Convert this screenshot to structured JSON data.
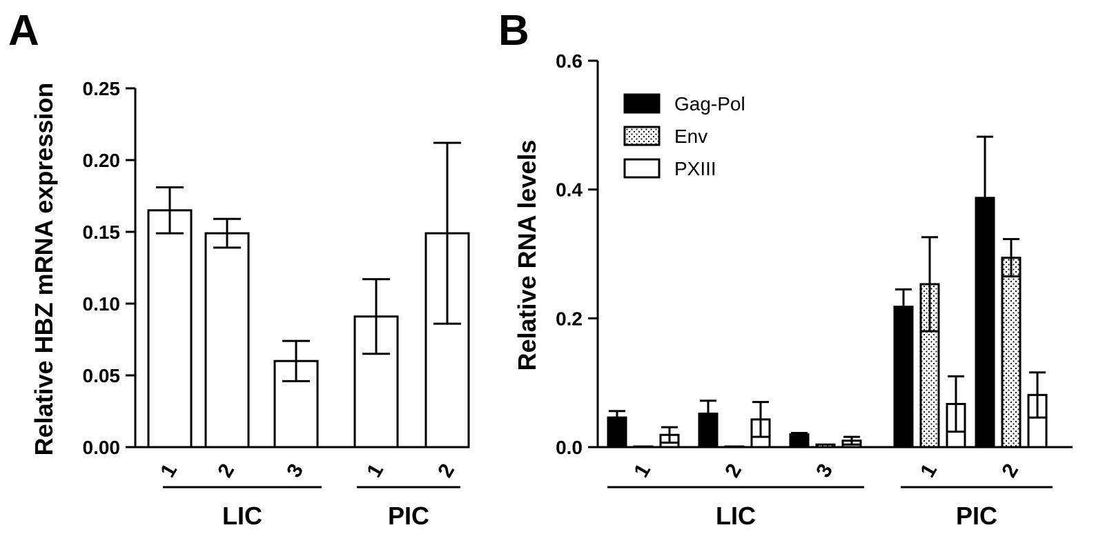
{
  "panels": [
    {
      "letter": "A"
    },
    {
      "letter": "B"
    }
  ],
  "chart_data": [
    {
      "type": "bar",
      "ylabel": "Relative HBZ mRNA expression",
      "ylim": [
        0,
        0.25
      ],
      "yticks": [
        0.0,
        0.05,
        0.1,
        0.15,
        0.2,
        0.25
      ],
      "ytick_labels": [
        "0.00",
        "0.05",
        "0.10",
        "0.15",
        "0.20",
        "0.25"
      ],
      "categories": [
        "1",
        "2",
        "3",
        "1",
        "2"
      ],
      "groups": [
        {
          "label": "LIC",
          "categories": [
            0,
            1,
            2
          ]
        },
        {
          "label": "PIC",
          "categories": [
            3,
            4
          ]
        }
      ],
      "series": [
        {
          "values": [
            0.165,
            0.149,
            0.06,
            0.091,
            0.149
          ],
          "errors": [
            0.016,
            0.01,
            0.014,
            0.026,
            0.063
          ],
          "fill": "white"
        }
      ]
    },
    {
      "type": "bar",
      "ylabel": "Relative RNA levels",
      "ylim": [
        0,
        0.6
      ],
      "yticks": [
        0.0,
        0.2,
        0.4,
        0.6
      ],
      "ytick_labels": [
        "0.0",
        "0.2",
        "0.4",
        "0.6"
      ],
      "categories": [
        "1",
        "2",
        "3",
        "1",
        "2"
      ],
      "groups": [
        {
          "label": "LIC",
          "categories": [
            0,
            1,
            2
          ]
        },
        {
          "label": "PIC",
          "categories": [
            3,
            4
          ]
        }
      ],
      "legend": {
        "position": "top-left"
      },
      "series": [
        {
          "name": "Gag-Pol",
          "fill": "black",
          "values": [
            0.046,
            0.052,
            0.02,
            0.218,
            0.387
          ],
          "errors": [
            0.01,
            0.02,
            0.002,
            0.027,
            0.095
          ]
        },
        {
          "name": "Env",
          "fill": "dotted",
          "values": [
            0.001,
            0.001,
            0.004,
            0.253,
            0.294
          ],
          "errors": [
            0,
            0,
            0,
            0.073,
            0.029
          ]
        },
        {
          "name": "PXIII",
          "fill": "white",
          "values": [
            0.019,
            0.043,
            0.01,
            0.067,
            0.081
          ],
          "errors": [
            0.012,
            0.027,
            0.006,
            0.043,
            0.035
          ]
        }
      ]
    }
  ]
}
